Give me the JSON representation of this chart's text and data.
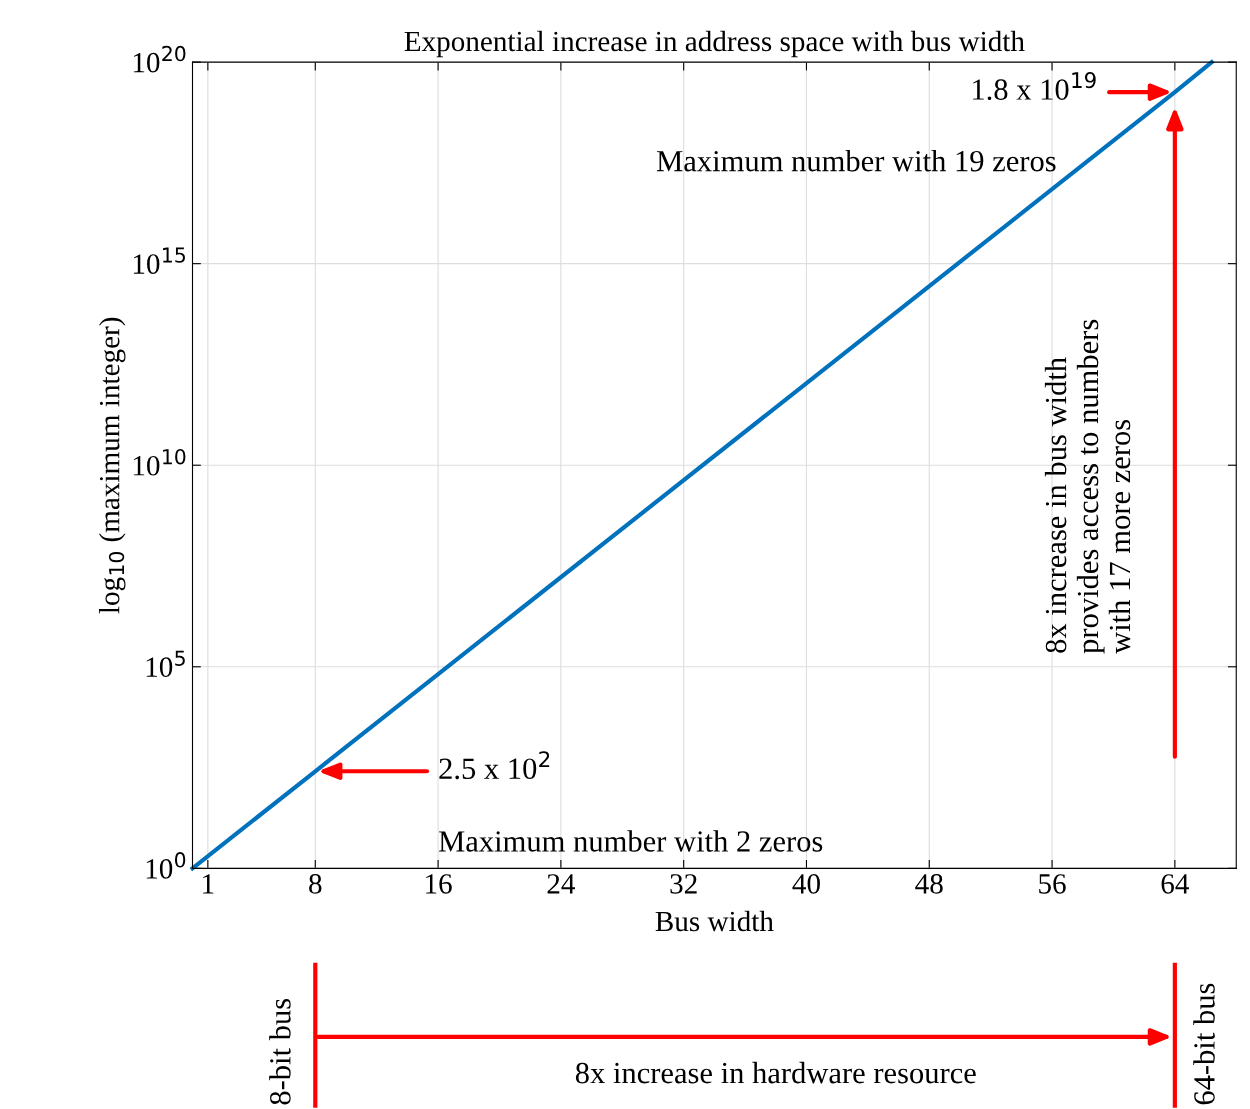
{
  "chart_data": {
    "type": "line",
    "title": "Exponential increase in address space with bus width",
    "xlabel": "Bus width",
    "ylabel": "log$_{10}$ (maximum integer)",
    "x": [
      0,
      8,
      64,
      66.4
    ],
    "series": [
      {
        "color": "#0072bd",
        "values": [
          1,
          256,
          1.8e+19,
          1e+20
        ]
      }
    ],
    "log": "y",
    "xlim": [
      0,
      68
    ],
    "xticks": [
      1,
      8,
      16,
      24,
      32,
      40,
      48,
      56,
      64
    ],
    "ylim": [
      1,
      1e+20
    ],
    "yticks": [
      {
        "value": 1,
        "label": "10$^{0}$"
      },
      {
        "value": 100000.0,
        "label": "10$^{5}$"
      },
      {
        "value": 10000000000.0,
        "label": "10$^{10}$"
      },
      {
        "value": 1000000000000000.0,
        "label": "10$^{15}$"
      },
      {
        "value": 1e+20,
        "label": "10$^{20}$"
      }
    ],
    "grid": true,
    "legend": false,
    "marker": "none",
    "line_style": "solid",
    "annotations": [
      {
        "text": "1.8 x 10$^{19}$",
        "x": 64,
        "y": 1.8e+19
      },
      "Maximum number with 19 zeros",
      {
        "text": "2.5 x 10$^{2}$",
        "x": 8,
        "y": 256
      },
      "Maximum number with 2 zeros",
      "8x increase in bus width\nprovides access to numbers\nwith 17 more zeros",
      "8-bit bus",
      "64-bit bus",
      "8x increase in hardware resource"
    ]
  }
}
